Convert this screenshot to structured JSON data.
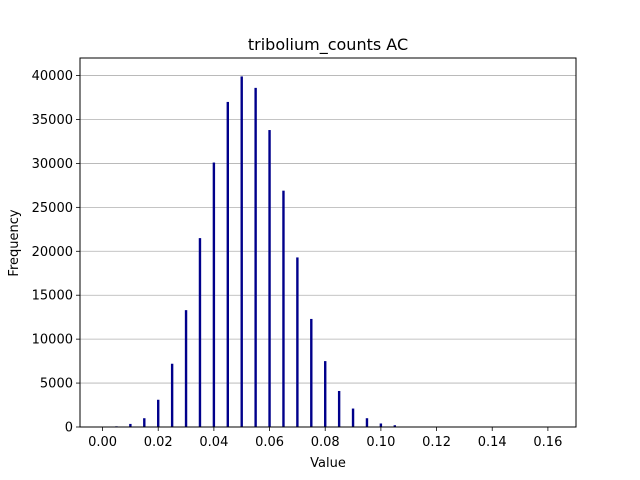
{
  "chart_data": {
    "type": "bar",
    "title": "tribolium_counts AC",
    "xlabel": "Value",
    "ylabel": "Frequency",
    "xlim": [
      -0.0081,
      0.1701
    ],
    "ylim": [
      0,
      42000
    ],
    "grid": "y",
    "bar_color": "#00008b",
    "xticks": [
      0.0,
      0.02,
      0.04,
      0.06,
      0.08,
      0.1,
      0.12,
      0.14,
      0.16
    ],
    "xtick_labels": [
      "0.00",
      "0.02",
      "0.04",
      "0.06",
      "0.08",
      "0.10",
      "0.12",
      "0.14",
      "0.16"
    ],
    "yticks": [
      0,
      5000,
      10000,
      15000,
      20000,
      25000,
      30000,
      35000,
      40000
    ],
    "ytick_labels": [
      "0",
      "5000",
      "10000",
      "15000",
      "20000",
      "25000",
      "30000",
      "35000",
      "40000"
    ],
    "x": [
      0.005,
      0.01,
      0.015,
      0.02,
      0.025,
      0.03,
      0.035,
      0.04,
      0.045,
      0.05,
      0.055,
      0.06,
      0.065,
      0.07,
      0.075,
      0.08,
      0.085,
      0.09,
      0.095,
      0.1,
      0.105
    ],
    "values": [
      80,
      350,
      1000,
      3100,
      7200,
      13300,
      21500,
      30100,
      37000,
      39900,
      38600,
      33800,
      26900,
      19300,
      12300,
      7500,
      4100,
      2100,
      1000,
      400,
      200
    ]
  }
}
